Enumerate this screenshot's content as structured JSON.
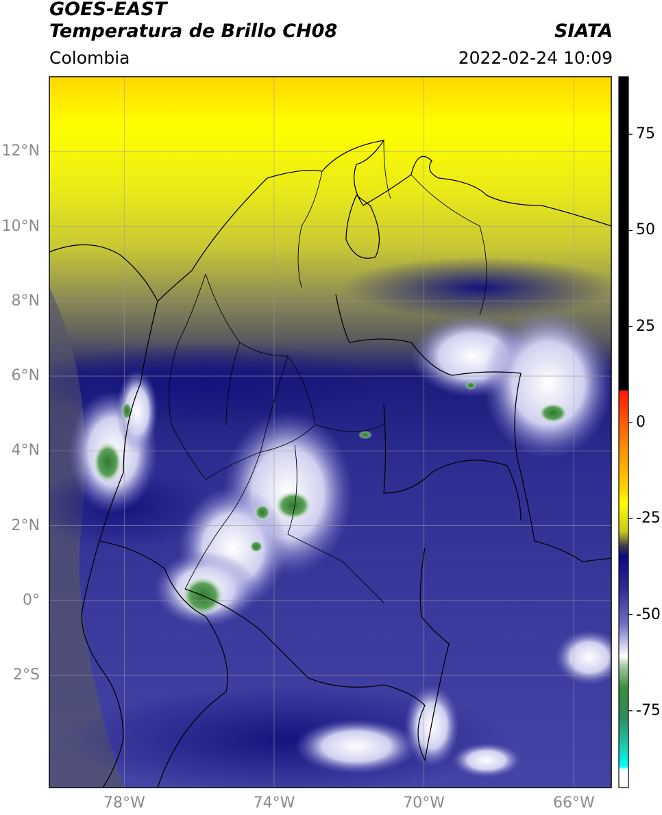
{
  "header": {
    "title_line1": "GOES-EAST",
    "title_line2": "Temperatura de Brillo CH08",
    "region": "Colombia",
    "brand": "SIATA",
    "timestamp": "2022-02-24 10:09"
  },
  "map": {
    "lat_range": [
      -5,
      14
    ],
    "lon_range": [
      -80,
      -65
    ],
    "lat_ticks": [
      {
        "value": 12,
        "label": "12°N"
      },
      {
        "value": 10,
        "label": "10°N"
      },
      {
        "value": 8,
        "label": "8°N"
      },
      {
        "value": 6,
        "label": "6°N"
      },
      {
        "value": 4,
        "label": "4°N"
      },
      {
        "value": 2,
        "label": "2°N"
      },
      {
        "value": 0,
        "label": "0°"
      },
      {
        "value": -2,
        "label": "2°S"
      }
    ],
    "lon_ticks": [
      {
        "value": -78,
        "label": "78°W"
      },
      {
        "value": -74,
        "label": "74°W"
      },
      {
        "value": -70,
        "label": "70°W"
      },
      {
        "value": -66,
        "label": "66°W"
      }
    ]
  },
  "colorbar": {
    "range": [
      -95,
      90
    ],
    "ticks": [
      {
        "value": 75,
        "label": "75"
      },
      {
        "value": 50,
        "label": "50"
      },
      {
        "value": 25,
        "label": "25"
      },
      {
        "value": 0,
        "label": "0"
      },
      {
        "value": -25,
        "label": "-25"
      },
      {
        "value": -50,
        "label": "-50"
      },
      {
        "value": -75,
        "label": "-75"
      }
    ],
    "colors": {
      "black": "#000000",
      "red": "#ff1a00",
      "orange": "#ff9900",
      "yellow": "#ffff00",
      "olive": "#6e6e46",
      "navy": "#0a0a82",
      "blue": "#3c3ca0",
      "lavender": "#b4b4e6",
      "white": "#ffffff",
      "green": "#3c8c3c",
      "teal": "#1ec8aa",
      "cyan": "#00ffff"
    }
  }
}
